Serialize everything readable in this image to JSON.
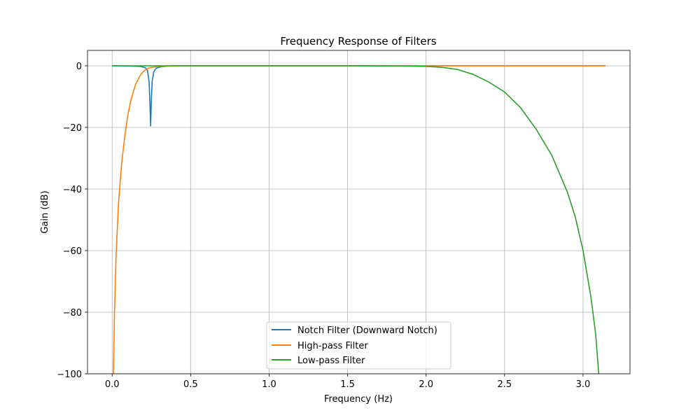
{
  "chart_data": {
    "type": "line",
    "title": "Frequency Response of Filters",
    "xlabel": "Frequency (Hz)",
    "ylabel": "Gain (dB)",
    "xlim": [
      -0.157,
      3.299
    ],
    "ylim": [
      -100,
      5
    ],
    "grid": true,
    "legend_position": "lower center",
    "xticks": [
      0.0,
      0.5,
      1.0,
      1.5,
      2.0,
      2.5,
      3.0
    ],
    "xtick_labels": [
      "0.0",
      "0.5",
      "1.0",
      "1.5",
      "2.0",
      "2.5",
      "3.0"
    ],
    "yticks": [
      0,
      -20,
      -40,
      -60,
      -80,
      -100
    ],
    "ytick_labels": [
      "0",
      "−20",
      "−40",
      "−60",
      "−80",
      "−100"
    ],
    "series": [
      {
        "name": "Notch Filter (Downward Notch)",
        "color": "#1f77b4",
        "x": [
          0.0,
          0.1,
          0.18,
          0.21,
          0.225,
          0.235,
          0.24,
          0.245,
          0.25,
          0.255,
          0.265,
          0.28,
          0.31,
          0.35,
          0.4,
          0.5,
          1.0,
          1.5,
          2.0,
          2.5,
          3.0,
          3.1416
        ],
        "y": [
          0,
          -0.05,
          -0.2,
          -0.6,
          -1.5,
          -5,
          -11,
          -19.5,
          -11,
          -5,
          -2,
          -0.8,
          -0.3,
          -0.1,
          0,
          0,
          0,
          0,
          0,
          0,
          0,
          0
        ]
      },
      {
        "name": "High-pass Filter",
        "color": "#ff7f0e",
        "x": [
          0.008,
          0.015,
          0.025,
          0.04,
          0.06,
          0.08,
          0.1,
          0.12,
          0.15,
          0.18,
          0.2,
          0.22,
          0.25,
          0.3,
          0.35,
          0.5,
          1.0,
          1.5,
          2.0,
          2.5,
          3.0,
          3.1416
        ],
        "y": [
          -100,
          -80,
          -62,
          -45,
          -32,
          -23,
          -16,
          -11,
          -6,
          -3,
          -1.8,
          -1.0,
          -0.5,
          -0.15,
          -0.05,
          0,
          0,
          0,
          0,
          0,
          0,
          0
        ]
      },
      {
        "name": "Low-pass Filter",
        "color": "#2ca02c",
        "x": [
          0.0,
          0.5,
          1.0,
          1.5,
          1.9,
          2.0,
          2.1,
          2.2,
          2.3,
          2.4,
          2.5,
          2.6,
          2.7,
          2.8,
          2.9,
          2.95,
          3.0,
          3.05,
          3.08,
          3.1
        ],
        "y": [
          0,
          0,
          0,
          0,
          -0.1,
          -0.2,
          -0.5,
          -1.2,
          -2.8,
          -5.3,
          -8.5,
          -13.5,
          -20.5,
          -29,
          -41,
          -49,
          -60,
          -75,
          -87,
          -100
        ]
      }
    ]
  }
}
